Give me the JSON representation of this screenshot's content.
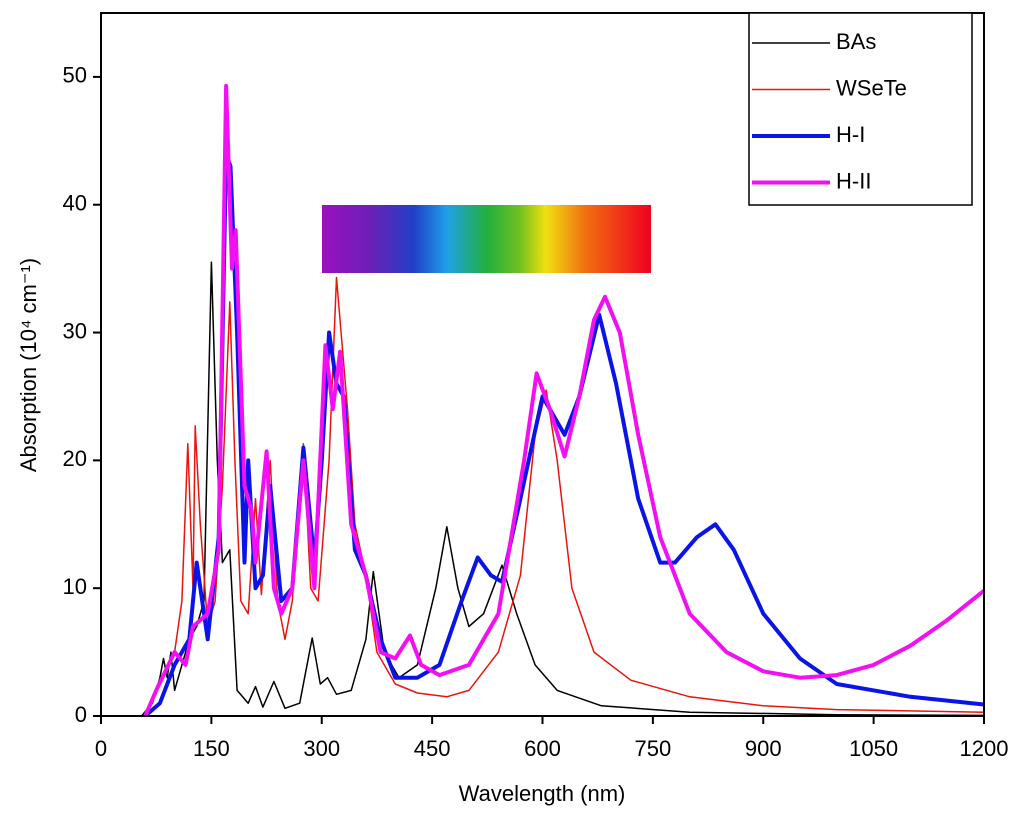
{
  "chart_data": {
    "type": "line",
    "xlabel": "Wavelength (nm)",
    "ylabel": "Absorption (10⁴ cm⁻¹)",
    "xlim": [
      0,
      1200
    ],
    "ylim": [
      0,
      55
    ],
    "xticks": [
      0,
      150,
      300,
      450,
      600,
      750,
      900,
      1050,
      1200
    ],
    "yticks": [
      0,
      10,
      20,
      30,
      40,
      50
    ],
    "legend": "upper right",
    "series": [
      {
        "name": "BAs",
        "color": "#000000",
        "width": 1.5,
        "x": [
          55,
          70,
          80,
          85,
          90,
          95,
          100,
          110,
          120,
          130,
          140,
          150,
          158,
          165,
          175,
          185,
          200,
          210,
          220,
          235,
          250,
          270,
          287,
          298,
          308,
          320,
          340,
          360,
          370,
          385,
          405,
          430,
          455,
          470,
          485,
          500,
          520,
          545,
          565,
          590,
          620,
          680,
          800,
          1000,
          1200
        ],
        "values": [
          0,
          1,
          3,
          4.5,
          3,
          5,
          2,
          4,
          6,
          7,
          9,
          35.5,
          20,
          12,
          13,
          2,
          1,
          2.3,
          0.7,
          2.7,
          0.6,
          1,
          6.1,
          2.5,
          3,
          1.7,
          2,
          6,
          11.3,
          5,
          3,
          4,
          10,
          14.8,
          10,
          7,
          8,
          11.8,
          8,
          4,
          2,
          0.8,
          0.3,
          0.1,
          0.05
        ]
      },
      {
        "name": "WSeTe",
        "color": "#e8150e",
        "width": 1.5,
        "x": [
          60,
          100,
          110,
          118,
          125,
          128,
          135,
          145,
          155,
          165,
          175,
          182,
          190,
          200,
          210,
          218,
          230,
          240,
          250,
          260,
          275,
          285,
          295,
          310,
          320,
          335,
          345,
          360,
          375,
          400,
          430,
          470,
          500,
          540,
          570,
          590,
          605,
          620,
          640,
          670,
          720,
          800,
          900,
          1000,
          1200
        ],
        "values": [
          0,
          5,
          9,
          21.3,
          10,
          22.7,
          15,
          7,
          9,
          18,
          32.4,
          20,
          9,
          8,
          17,
          9.5,
          20,
          9,
          6,
          9,
          21.3,
          10,
          9,
          20,
          34.3,
          24,
          15,
          11,
          5,
          2.5,
          1.8,
          1.5,
          2,
          5,
          11,
          22,
          25.5,
          20,
          10,
          5,
          2.8,
          1.5,
          0.8,
          0.5,
          0.3
        ]
      },
      {
        "name": "H-I",
        "color": "#0a14e6",
        "width": 4,
        "x": [
          60,
          80,
          100,
          120,
          130,
          145,
          160,
          170,
          176,
          185,
          195,
          200,
          210,
          220,
          230,
          245,
          260,
          275,
          290,
          300,
          310,
          320,
          330,
          345,
          360,
          380,
          400,
          430,
          460,
          490,
          512,
          530,
          545,
          570,
          600,
          630,
          650,
          677,
          700,
          730,
          760,
          780,
          810,
          835,
          860,
          900,
          950,
          1000,
          1100,
          1200
        ],
        "values": [
          0,
          1,
          4,
          6,
          12,
          6,
          14,
          44,
          43,
          30,
          12,
          20,
          10,
          11,
          18,
          9,
          10,
          21,
          12,
          20,
          30,
          26,
          25,
          13,
          11,
          6,
          3,
          3,
          4,
          9,
          12.4,
          11,
          10.5,
          17,
          25,
          22,
          25,
          31.4,
          26,
          17,
          12,
          12,
          14,
          15,
          13,
          8,
          4.5,
          2.5,
          1.5,
          0.9
        ]
      },
      {
        "name": "H-II",
        "color": "#f20ff2",
        "width": 4,
        "x": [
          60,
          75,
          100,
          115,
          125,
          145,
          160,
          170,
          178,
          183,
          195,
          205,
          210,
          225,
          235,
          245,
          260,
          275,
          290,
          305,
          315,
          325,
          340,
          360,
          380,
          400,
          420,
          435,
          460,
          500,
          540,
          575,
          592,
          610,
          630,
          650,
          670,
          685,
          705,
          730,
          760,
          800,
          850,
          900,
          950,
          1000,
          1050,
          1100,
          1150,
          1200
        ],
        "values": [
          0,
          2,
          5,
          4,
          7,
          8,
          13,
          49.3,
          35,
          38,
          18,
          16,
          12,
          20.7,
          10,
          8,
          10,
          20,
          10,
          29,
          24,
          28.5,
          15,
          11,
          5,
          4.5,
          6.3,
          4,
          3.2,
          4,
          8,
          20,
          26.8,
          24,
          20.3,
          25,
          31,
          32.8,
          30,
          22,
          14,
          8,
          5,
          3.5,
          3,
          3.2,
          4,
          5.5,
          7.5,
          9.8
        ]
      }
    ]
  }
}
